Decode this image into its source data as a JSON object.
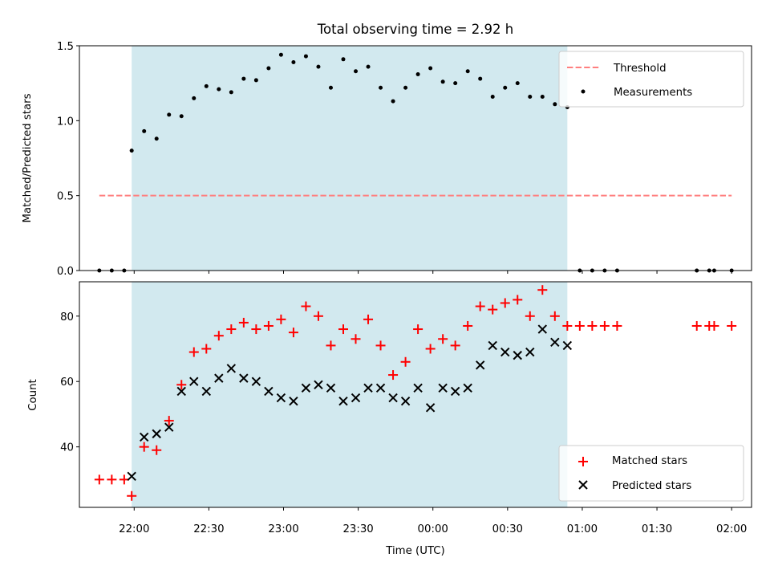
{
  "figure_title": "Total observing time = 2.92 h",
  "colors": {
    "observing_shade": "#d2e9ef",
    "threshold": "#ff7f7f",
    "measurements": "#000000",
    "matched": "#ff0000",
    "predicted": "#000000"
  },
  "chart_data": [
    {
      "type": "scatter",
      "name": "ratio-panel",
      "title": "Total observing time = 2.92 h",
      "xlabel": "",
      "ylabel": "Matched/Predicted stars",
      "x_is_time": true,
      "ylim": [
        0,
        1.5
      ],
      "yticks": [
        0.0,
        0.5,
        1.0,
        1.5
      ],
      "ytick_labels": [
        "0.0",
        "0.5",
        "1.0",
        "1.5"
      ],
      "observing_window": [
        "21:59",
        "00:54"
      ],
      "threshold": {
        "name": "Threshold",
        "value": 0.5,
        "x_start": "21:46",
        "x_end": "02:00",
        "style": "dashed"
      },
      "series": [
        {
          "name": "Measurements",
          "marker": "dot",
          "points": [
            [
              "21:46",
              0.0
            ],
            [
              "21:51",
              0.0
            ],
            [
              "21:56",
              0.0
            ],
            [
              "21:59",
              0.8
            ],
            [
              "22:04",
              0.93
            ],
            [
              "22:09",
              0.88
            ],
            [
              "22:14",
              1.04
            ],
            [
              "22:19",
              1.03
            ],
            [
              "22:24",
              1.15
            ],
            [
              "22:29",
              1.23
            ],
            [
              "22:34",
              1.21
            ],
            [
              "22:39",
              1.19
            ],
            [
              "22:44",
              1.28
            ],
            [
              "22:49",
              1.27
            ],
            [
              "22:54",
              1.35
            ],
            [
              "22:59",
              1.44
            ],
            [
              "23:04",
              1.39
            ],
            [
              "23:09",
              1.43
            ],
            [
              "23:14",
              1.36
            ],
            [
              "23:19",
              1.22
            ],
            [
              "23:24",
              1.41
            ],
            [
              "23:29",
              1.33
            ],
            [
              "23:34",
              1.36
            ],
            [
              "23:39",
              1.22
            ],
            [
              "23:44",
              1.13
            ],
            [
              "23:49",
              1.22
            ],
            [
              "23:54",
              1.31
            ],
            [
              "23:59",
              1.35
            ],
            [
              "00:04",
              1.26
            ],
            [
              "00:09",
              1.25
            ],
            [
              "00:14",
              1.33
            ],
            [
              "00:19",
              1.28
            ],
            [
              "00:24",
              1.16
            ],
            [
              "00:29",
              1.22
            ],
            [
              "00:34",
              1.25
            ],
            [
              "00:39",
              1.16
            ],
            [
              "00:44",
              1.16
            ],
            [
              "00:49",
              1.11
            ],
            [
              "00:54",
              1.09
            ],
            [
              "00:59",
              0.0
            ],
            [
              "01:04",
              0.0
            ],
            [
              "01:09",
              0.0
            ],
            [
              "01:14",
              0.0
            ],
            [
              "01:46",
              0.0
            ],
            [
              "01:51",
              0.0
            ],
            [
              "01:53",
              0.0
            ],
            [
              "02:00",
              0.0
            ]
          ]
        }
      ],
      "legend": {
        "position": "top-right",
        "entries": [
          "Threshold",
          "Measurements"
        ]
      }
    },
    {
      "type": "scatter",
      "name": "count-panel",
      "title": "",
      "xlabel": "Time (UTC)",
      "ylabel": "Count",
      "x_is_time": true,
      "x_range": [
        "21:38",
        "02:08"
      ],
      "xticks": [
        "22:00",
        "22:30",
        "23:00",
        "23:30",
        "00:00",
        "00:30",
        "01:00",
        "01:30",
        "02:00"
      ],
      "ylim": [
        21.5,
        90.5
      ],
      "yticks": [
        40,
        60,
        80
      ],
      "ytick_labels": [
        "40",
        "60",
        "80"
      ],
      "observing_window": [
        "21:59",
        "00:54"
      ],
      "series": [
        {
          "name": "Matched stars",
          "marker": "plus",
          "points": [
            [
              "21:46",
              30
            ],
            [
              "21:51",
              30
            ],
            [
              "21:56",
              30
            ],
            [
              "21:59",
              25
            ],
            [
              "22:04",
              40
            ],
            [
              "22:09",
              39
            ],
            [
              "22:14",
              48
            ],
            [
              "22:19",
              59
            ],
            [
              "22:24",
              69
            ],
            [
              "22:29",
              70
            ],
            [
              "22:34",
              74
            ],
            [
              "22:39",
              76
            ],
            [
              "22:44",
              78
            ],
            [
              "22:49",
              76
            ],
            [
              "22:54",
              77
            ],
            [
              "22:59",
              79
            ],
            [
              "23:04",
              75
            ],
            [
              "23:09",
              83
            ],
            [
              "23:14",
              80
            ],
            [
              "23:19",
              71
            ],
            [
              "23:24",
              76
            ],
            [
              "23:29",
              73
            ],
            [
              "23:34",
              79
            ],
            [
              "23:39",
              71
            ],
            [
              "23:44",
              62
            ],
            [
              "23:49",
              66
            ],
            [
              "23:54",
              76
            ],
            [
              "23:59",
              70
            ],
            [
              "00:04",
              73
            ],
            [
              "00:09",
              71
            ],
            [
              "00:14",
              77
            ],
            [
              "00:19",
              83
            ],
            [
              "00:24",
              82
            ],
            [
              "00:29",
              84
            ],
            [
              "00:34",
              85
            ],
            [
              "00:39",
              80
            ],
            [
              "00:44",
              88
            ],
            [
              "00:49",
              80
            ],
            [
              "00:54",
              77
            ],
            [
              "00:59",
              77
            ],
            [
              "01:04",
              77
            ],
            [
              "01:09",
              77
            ],
            [
              "01:14",
              77
            ],
            [
              "01:46",
              77
            ],
            [
              "01:51",
              77
            ],
            [
              "01:53",
              77
            ],
            [
              "02:00",
              77
            ]
          ]
        },
        {
          "name": "Predicted stars",
          "marker": "x",
          "points": [
            [
              "21:59",
              31
            ],
            [
              "22:04",
              43
            ],
            [
              "22:09",
              44
            ],
            [
              "22:14",
              46
            ],
            [
              "22:19",
              57
            ],
            [
              "22:24",
              60
            ],
            [
              "22:29",
              57
            ],
            [
              "22:34",
              61
            ],
            [
              "22:39",
              64
            ],
            [
              "22:44",
              61
            ],
            [
              "22:49",
              60
            ],
            [
              "22:54",
              57
            ],
            [
              "22:59",
              55
            ],
            [
              "23:04",
              54
            ],
            [
              "23:09",
              58
            ],
            [
              "23:14",
              59
            ],
            [
              "23:19",
              58
            ],
            [
              "23:24",
              54
            ],
            [
              "23:29",
              55
            ],
            [
              "23:34",
              58
            ],
            [
              "23:39",
              58
            ],
            [
              "23:44",
              55
            ],
            [
              "23:49",
              54
            ],
            [
              "23:54",
              58
            ],
            [
              "23:59",
              52
            ],
            [
              "00:04",
              58
            ],
            [
              "00:09",
              57
            ],
            [
              "00:14",
              58
            ],
            [
              "00:19",
              65
            ],
            [
              "00:24",
              71
            ],
            [
              "00:29",
              69
            ],
            [
              "00:34",
              68
            ],
            [
              "00:39",
              69
            ],
            [
              "00:44",
              76
            ],
            [
              "00:49",
              72
            ],
            [
              "00:54",
              71
            ]
          ]
        }
      ],
      "legend": {
        "position": "lower-right",
        "entries": [
          "Matched stars",
          "Predicted stars"
        ]
      }
    }
  ]
}
